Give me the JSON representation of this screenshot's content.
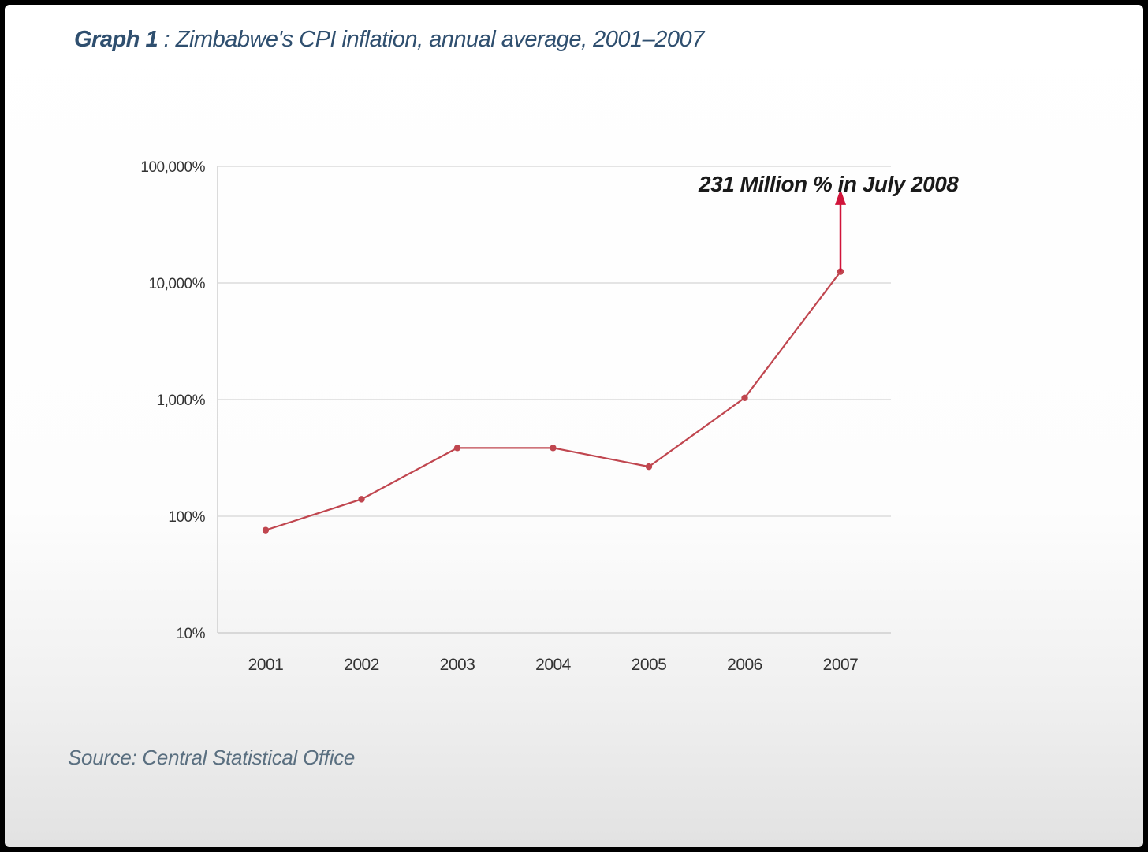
{
  "title_lead": "Graph 1",
  "title_rest": ": Zimbabwe's CPI inflation, annual average, 2001–2007",
  "source": "Source: Central Statistical Office",
  "chart_data": {
    "type": "line",
    "title": "Graph 1 : Zimbabwe's CPI inflation, annual average, 2001–2007",
    "xlabel": "",
    "ylabel": "",
    "yscale": "log",
    "ylim": [
      10,
      100000
    ],
    "grid": true,
    "categories": [
      "2001",
      "2002",
      "2003",
      "2004",
      "2005",
      "2006",
      "2007"
    ],
    "yticks": [
      10,
      100,
      1000,
      10000,
      100000
    ],
    "ytick_labels": [
      "10%",
      "100%",
      "1,000%",
      "10,000%",
      "100,000%"
    ],
    "series": [
      {
        "values": [
          76,
          140,
          385,
          385,
          266,
          1035,
          12500
        ],
        "color": "#c0464f"
      }
    ],
    "annotation": {
      "text": "231 Million % in July 2008",
      "arrow_from_category": "2007",
      "arrow_from_value": 12500,
      "arrow_to_value": 60000,
      "color": "#d0143a"
    }
  }
}
